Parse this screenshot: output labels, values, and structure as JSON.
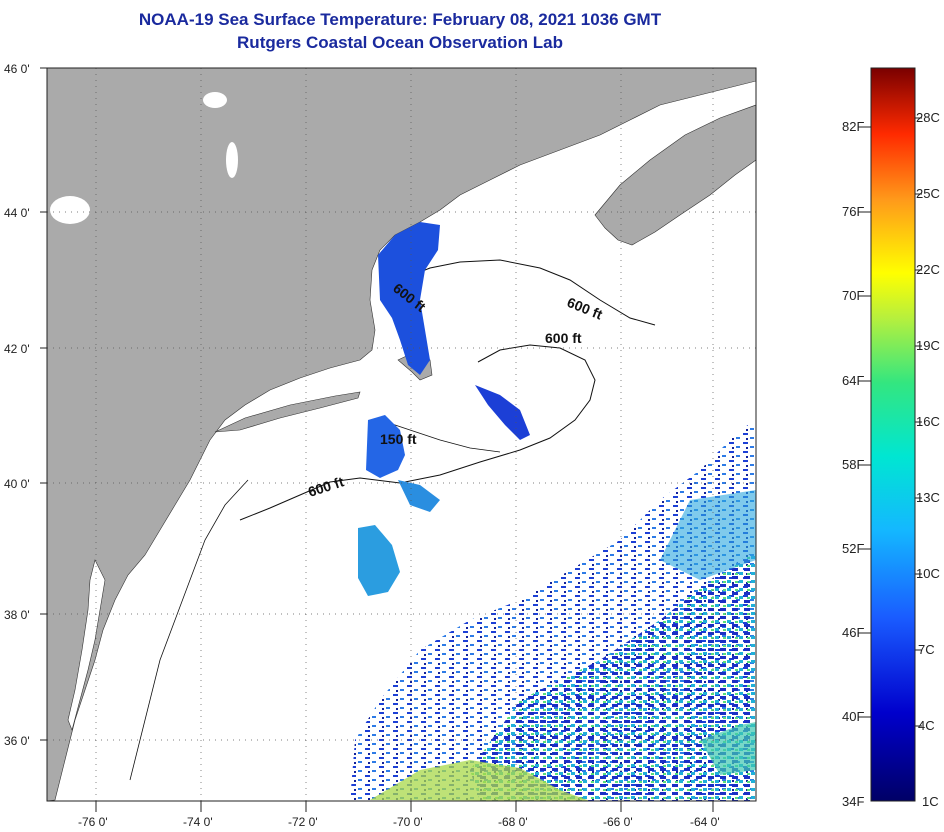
{
  "title": {
    "line1": "NOAA-19 Sea Surface Temperature:  February 08, 2021 1036 GMT",
    "line2": "Rutgers Coastal Ocean Observation Lab"
  },
  "axes": {
    "longitude_labels": [
      "-76 0'",
      "-74 0'",
      "-72 0'",
      "-70 0'",
      "-68 0'",
      "-66 0'",
      "-64 0'"
    ],
    "latitude_labels": [
      "46 0'",
      "44 0'",
      "42 0'",
      "40 0'",
      "38 0'",
      "36 0'"
    ],
    "lon_range": [
      -77,
      -63
    ],
    "lat_range": [
      35,
      46
    ]
  },
  "contours": [
    {
      "label": "600 ft"
    },
    {
      "label": "600 ft"
    },
    {
      "label": "600 ft"
    },
    {
      "label": "150 ft"
    },
    {
      "label": "600 ft"
    }
  ],
  "colorbar": {
    "fahrenheit_labels": [
      "82F",
      "76F",
      "70F",
      "64F",
      "58F",
      "52F",
      "46F",
      "40F",
      "34F"
    ],
    "celsius_labels": [
      "28C",
      "25C",
      "22C",
      "19C",
      "16C",
      "13C",
      "10C",
      "7C",
      "4C",
      "1C"
    ]
  },
  "colors": {
    "land": "#aaaaaa",
    "ocean": "#ffffff",
    "title": "#1a2a9e",
    "sst_cold": "#1c3fd6",
    "sst_mid": "#2aa6e0"
  }
}
